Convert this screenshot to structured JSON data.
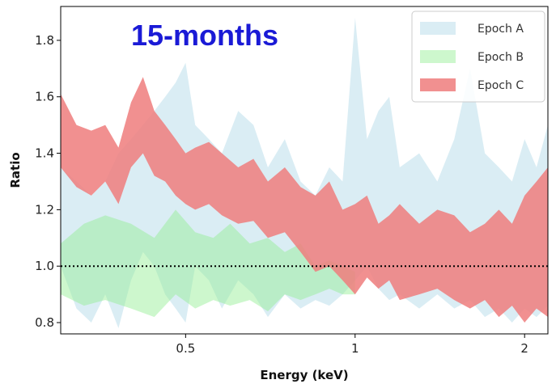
{
  "chart_data": {
    "type": "area",
    "annotation": "15-months",
    "xlabel": "Energy (keV)",
    "ylabel": "Ratio",
    "xscale": "log",
    "xlim": [
      0.3,
      2.2
    ],
    "ylim": [
      0.76,
      1.92
    ],
    "xticks": [
      {
        "value": 0.5,
        "label": "0.5"
      },
      {
        "value": 1.0,
        "label": "1"
      },
      {
        "value": 2.0,
        "label": "2"
      }
    ],
    "yticks": [
      {
        "value": 0.8,
        "label": "0.8"
      },
      {
        "value": 1.0,
        "label": "1.0"
      },
      {
        "value": 1.2,
        "label": "1.2"
      },
      {
        "value": 1.4,
        "label": "1.4"
      },
      {
        "value": 1.6,
        "label": "1.6"
      },
      {
        "value": 1.8,
        "label": "1.8"
      }
    ],
    "reference_line": {
      "y": 1.0,
      "style": "dotted",
      "color": "#000000"
    },
    "legend_position": "top-right",
    "series": [
      {
        "name": "Epoch A",
        "color": "#add8e6",
        "opacity": 0.45,
        "x": [
          0.3,
          0.32,
          0.34,
          0.36,
          0.38,
          0.4,
          0.42,
          0.44,
          0.46,
          0.48,
          0.5,
          0.52,
          0.55,
          0.58,
          0.62,
          0.66,
          0.7,
          0.75,
          0.8,
          0.85,
          0.9,
          0.95,
          1.0,
          1.05,
          1.1,
          1.15,
          1.2,
          1.3,
          1.4,
          1.5,
          1.6,
          1.7,
          1.8,
          1.9,
          2.0,
          2.1,
          2.2
        ],
        "upper": [
          1.35,
          1.3,
          1.25,
          1.3,
          1.4,
          1.45,
          1.5,
          1.55,
          1.6,
          1.65,
          1.72,
          1.5,
          1.45,
          1.4,
          1.55,
          1.5,
          1.35,
          1.45,
          1.3,
          1.25,
          1.35,
          1.3,
          1.88,
          1.45,
          1.55,
          1.6,
          1.35,
          1.4,
          1.3,
          1.45,
          1.7,
          1.4,
          1.35,
          1.3,
          1.45,
          1.35,
          1.5
        ],
        "lower": [
          1.0,
          0.85,
          0.8,
          0.9,
          0.78,
          0.95,
          1.05,
          1.0,
          0.9,
          0.85,
          0.8,
          1.0,
          0.95,
          0.85,
          0.95,
          0.9,
          0.82,
          0.9,
          0.85,
          0.88,
          0.86,
          0.9,
          0.95,
          1.0,
          0.92,
          0.88,
          0.9,
          0.85,
          0.9,
          0.85,
          0.88,
          0.82,
          0.85,
          0.8,
          0.85,
          0.82,
          0.86
        ]
      },
      {
        "name": "Epoch B",
        "color": "#90ee90",
        "opacity": 0.45,
        "x": [
          0.3,
          0.33,
          0.36,
          0.4,
          0.44,
          0.48,
          0.52,
          0.56,
          0.6,
          0.65,
          0.7,
          0.75,
          0.8,
          0.85,
          0.9,
          0.95,
          1.0
        ],
        "upper": [
          1.08,
          1.15,
          1.18,
          1.15,
          1.1,
          1.2,
          1.12,
          1.1,
          1.15,
          1.08,
          1.1,
          1.05,
          1.08,
          1.0,
          1.02,
          1.0,
          0.98
        ],
        "lower": [
          0.9,
          0.86,
          0.88,
          0.85,
          0.82,
          0.9,
          0.85,
          0.88,
          0.86,
          0.88,
          0.84,
          0.9,
          0.88,
          0.9,
          0.92,
          0.9,
          0.9
        ]
      },
      {
        "name": "Epoch C",
        "color": "#ef7d7d",
        "opacity": 0.85,
        "x": [
          0.3,
          0.32,
          0.34,
          0.36,
          0.38,
          0.4,
          0.42,
          0.44,
          0.46,
          0.48,
          0.5,
          0.52,
          0.55,
          0.58,
          0.62,
          0.66,
          0.7,
          0.75,
          0.8,
          0.85,
          0.9,
          0.95,
          1.0,
          1.05,
          1.1,
          1.15,
          1.2,
          1.3,
          1.4,
          1.5,
          1.6,
          1.7,
          1.8,
          1.9,
          2.0,
          2.1,
          2.2
        ],
        "upper": [
          1.61,
          1.5,
          1.48,
          1.5,
          1.42,
          1.58,
          1.67,
          1.55,
          1.5,
          1.45,
          1.4,
          1.42,
          1.44,
          1.4,
          1.35,
          1.38,
          1.3,
          1.35,
          1.28,
          1.25,
          1.3,
          1.2,
          1.22,
          1.25,
          1.15,
          1.18,
          1.22,
          1.15,
          1.2,
          1.18,
          1.12,
          1.15,
          1.2,
          1.15,
          1.25,
          1.3,
          1.35
        ],
        "lower": [
          1.35,
          1.28,
          1.25,
          1.3,
          1.22,
          1.35,
          1.4,
          1.32,
          1.3,
          1.25,
          1.22,
          1.2,
          1.22,
          1.18,
          1.15,
          1.16,
          1.1,
          1.12,
          1.05,
          0.98,
          1.0,
          0.95,
          0.9,
          0.96,
          0.92,
          0.95,
          0.88,
          0.9,
          0.92,
          0.88,
          0.85,
          0.88,
          0.82,
          0.86,
          0.8,
          0.85,
          0.82
        ]
      }
    ]
  }
}
